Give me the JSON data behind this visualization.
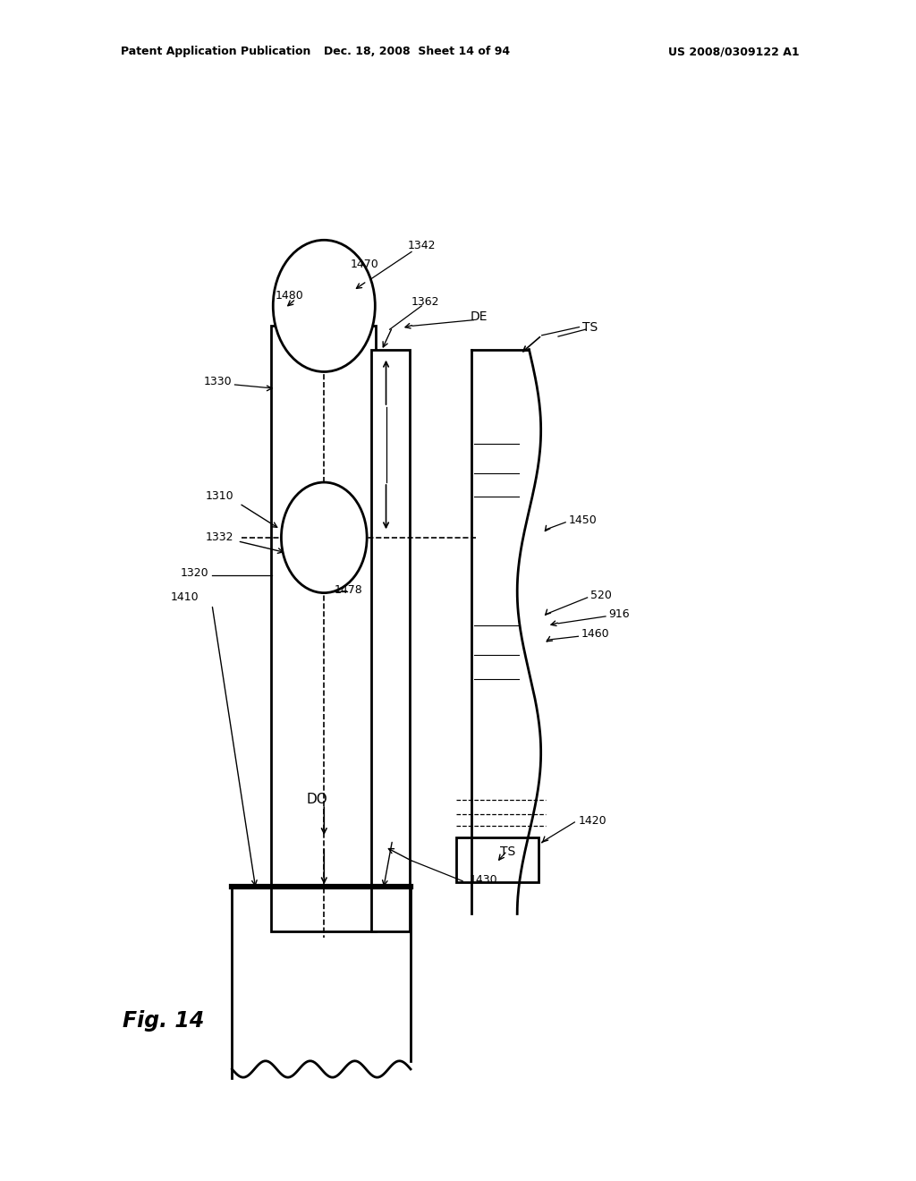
{
  "bg_color": "#ffffff",
  "header_left": "Patent Application Publication",
  "header_mid": "Dec. 18, 2008  Sheet 14 of 94",
  "header_right": "US 2008/0309122 A1",
  "fig_label": "Fig. 14"
}
